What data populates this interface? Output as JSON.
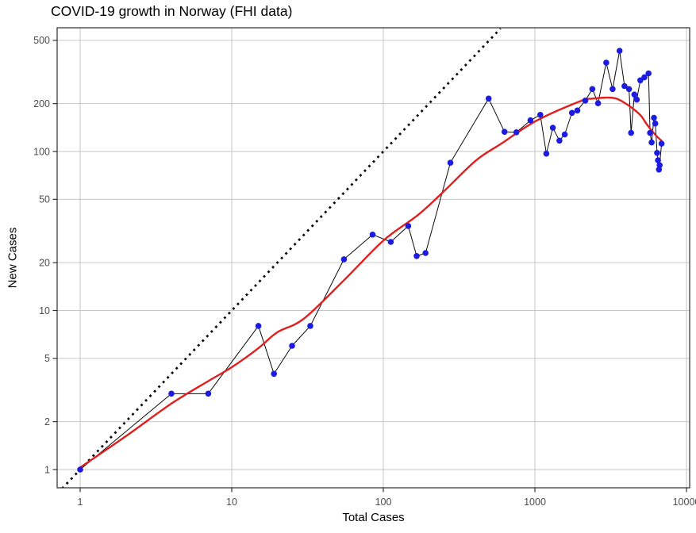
{
  "chart_data": {
    "type": "scatter",
    "title": "COVID-19 growth in Norway (FHI data)",
    "xlabel": "Total Cases",
    "ylabel": "New Cases",
    "x_scale": "log10",
    "y_scale": "log10",
    "xlim": [
      0.63,
      10500
    ],
    "ylim": [
      0.76,
      593
    ],
    "x_ticks": [
      1,
      10,
      100,
      1000,
      10000
    ],
    "x_tick_labels": [
      "1",
      "10",
      "100",
      "1000",
      "10000"
    ],
    "y_ticks": [
      1,
      2,
      5,
      10,
      20,
      50,
      100,
      200,
      500
    ],
    "y_tick_labels": [
      "1",
      "2",
      "5",
      "10",
      "20",
      "50",
      "100",
      "200",
      "500"
    ],
    "grid": "major-only",
    "legend_position": "none",
    "series": [
      {
        "name": "daily-new-vs-total-cases",
        "type": "scatter-with-line",
        "point_color": "#1c1ce0",
        "line_color": "#0a0a0a",
        "points": [
          [
            1,
            1
          ],
          [
            4,
            3
          ],
          [
            7,
            3
          ],
          [
            15,
            8
          ],
          [
            19,
            4
          ],
          [
            25,
            6
          ],
          [
            33,
            8
          ],
          [
            55,
            21
          ],
          [
            85,
            30
          ],
          [
            112,
            27
          ],
          [
            146,
            34
          ],
          [
            166,
            22
          ],
          [
            190,
            23
          ],
          [
            277,
            85
          ],
          [
            495,
            215
          ],
          [
            630,
            133
          ],
          [
            755,
            132
          ],
          [
            935,
            157
          ],
          [
            1085,
            170
          ],
          [
            1190,
            97
          ],
          [
            1313,
            141
          ],
          [
            1452,
            117
          ],
          [
            1573,
            128
          ],
          [
            1755,
            175
          ],
          [
            1905,
            181
          ],
          [
            2150,
            209
          ],
          [
            2395,
            247
          ],
          [
            2610,
            201
          ],
          [
            2955,
            362
          ],
          [
            3255,
            247
          ],
          [
            3620,
            430
          ],
          [
            3900,
            258
          ],
          [
            4180,
            247
          ],
          [
            4310,
            131
          ],
          [
            4530,
            228
          ],
          [
            4700,
            212
          ],
          [
            4960,
            280
          ],
          [
            5280,
            293
          ],
          [
            5620,
            310
          ],
          [
            5750,
            131
          ],
          [
            5890,
            114
          ],
          [
            6100,
            163
          ],
          [
            6230,
            150
          ],
          [
            6400,
            98
          ],
          [
            6490,
            88
          ],
          [
            6580,
            77
          ],
          [
            6650,
            82
          ],
          [
            6850,
            112
          ]
        ]
      },
      {
        "name": "smoothed-trend",
        "type": "smooth-line",
        "color": "#e01f1f",
        "points": [
          [
            1,
            1.03
          ],
          [
            2,
            1.62
          ],
          [
            4,
            2.6
          ],
          [
            7,
            3.6
          ],
          [
            10,
            4.4
          ],
          [
            15,
            5.8
          ],
          [
            20,
            7.3
          ],
          [
            30,
            8.9
          ],
          [
            55,
            15.5
          ],
          [
            100,
            27.5
          ],
          [
            170,
            40
          ],
          [
            250,
            56
          ],
          [
            410,
            88
          ],
          [
            600,
            112
          ],
          [
            1010,
            155
          ],
          [
            1960,
            206
          ],
          [
            2400,
            215
          ],
          [
            3000,
            218
          ],
          [
            3500,
            214
          ],
          [
            4300,
            190
          ],
          [
            5000,
            168
          ],
          [
            5480,
            148
          ],
          [
            6200,
            128
          ],
          [
            6830,
            117
          ]
        ]
      },
      {
        "name": "identity-reference-line",
        "type": "dotted-line",
        "color": "#0a0a0a",
        "points": [
          [
            0.76,
            0.76
          ],
          [
            593,
            593
          ]
        ]
      }
    ]
  },
  "colors": {
    "background": "#ffffff",
    "panel_background": "#ffffff",
    "gridline": "#c6c6c6",
    "panel_border": "#2b2b2b",
    "tick_mark": "#333333",
    "tick_label": "#4d4d4d",
    "title_text": "#000000"
  }
}
